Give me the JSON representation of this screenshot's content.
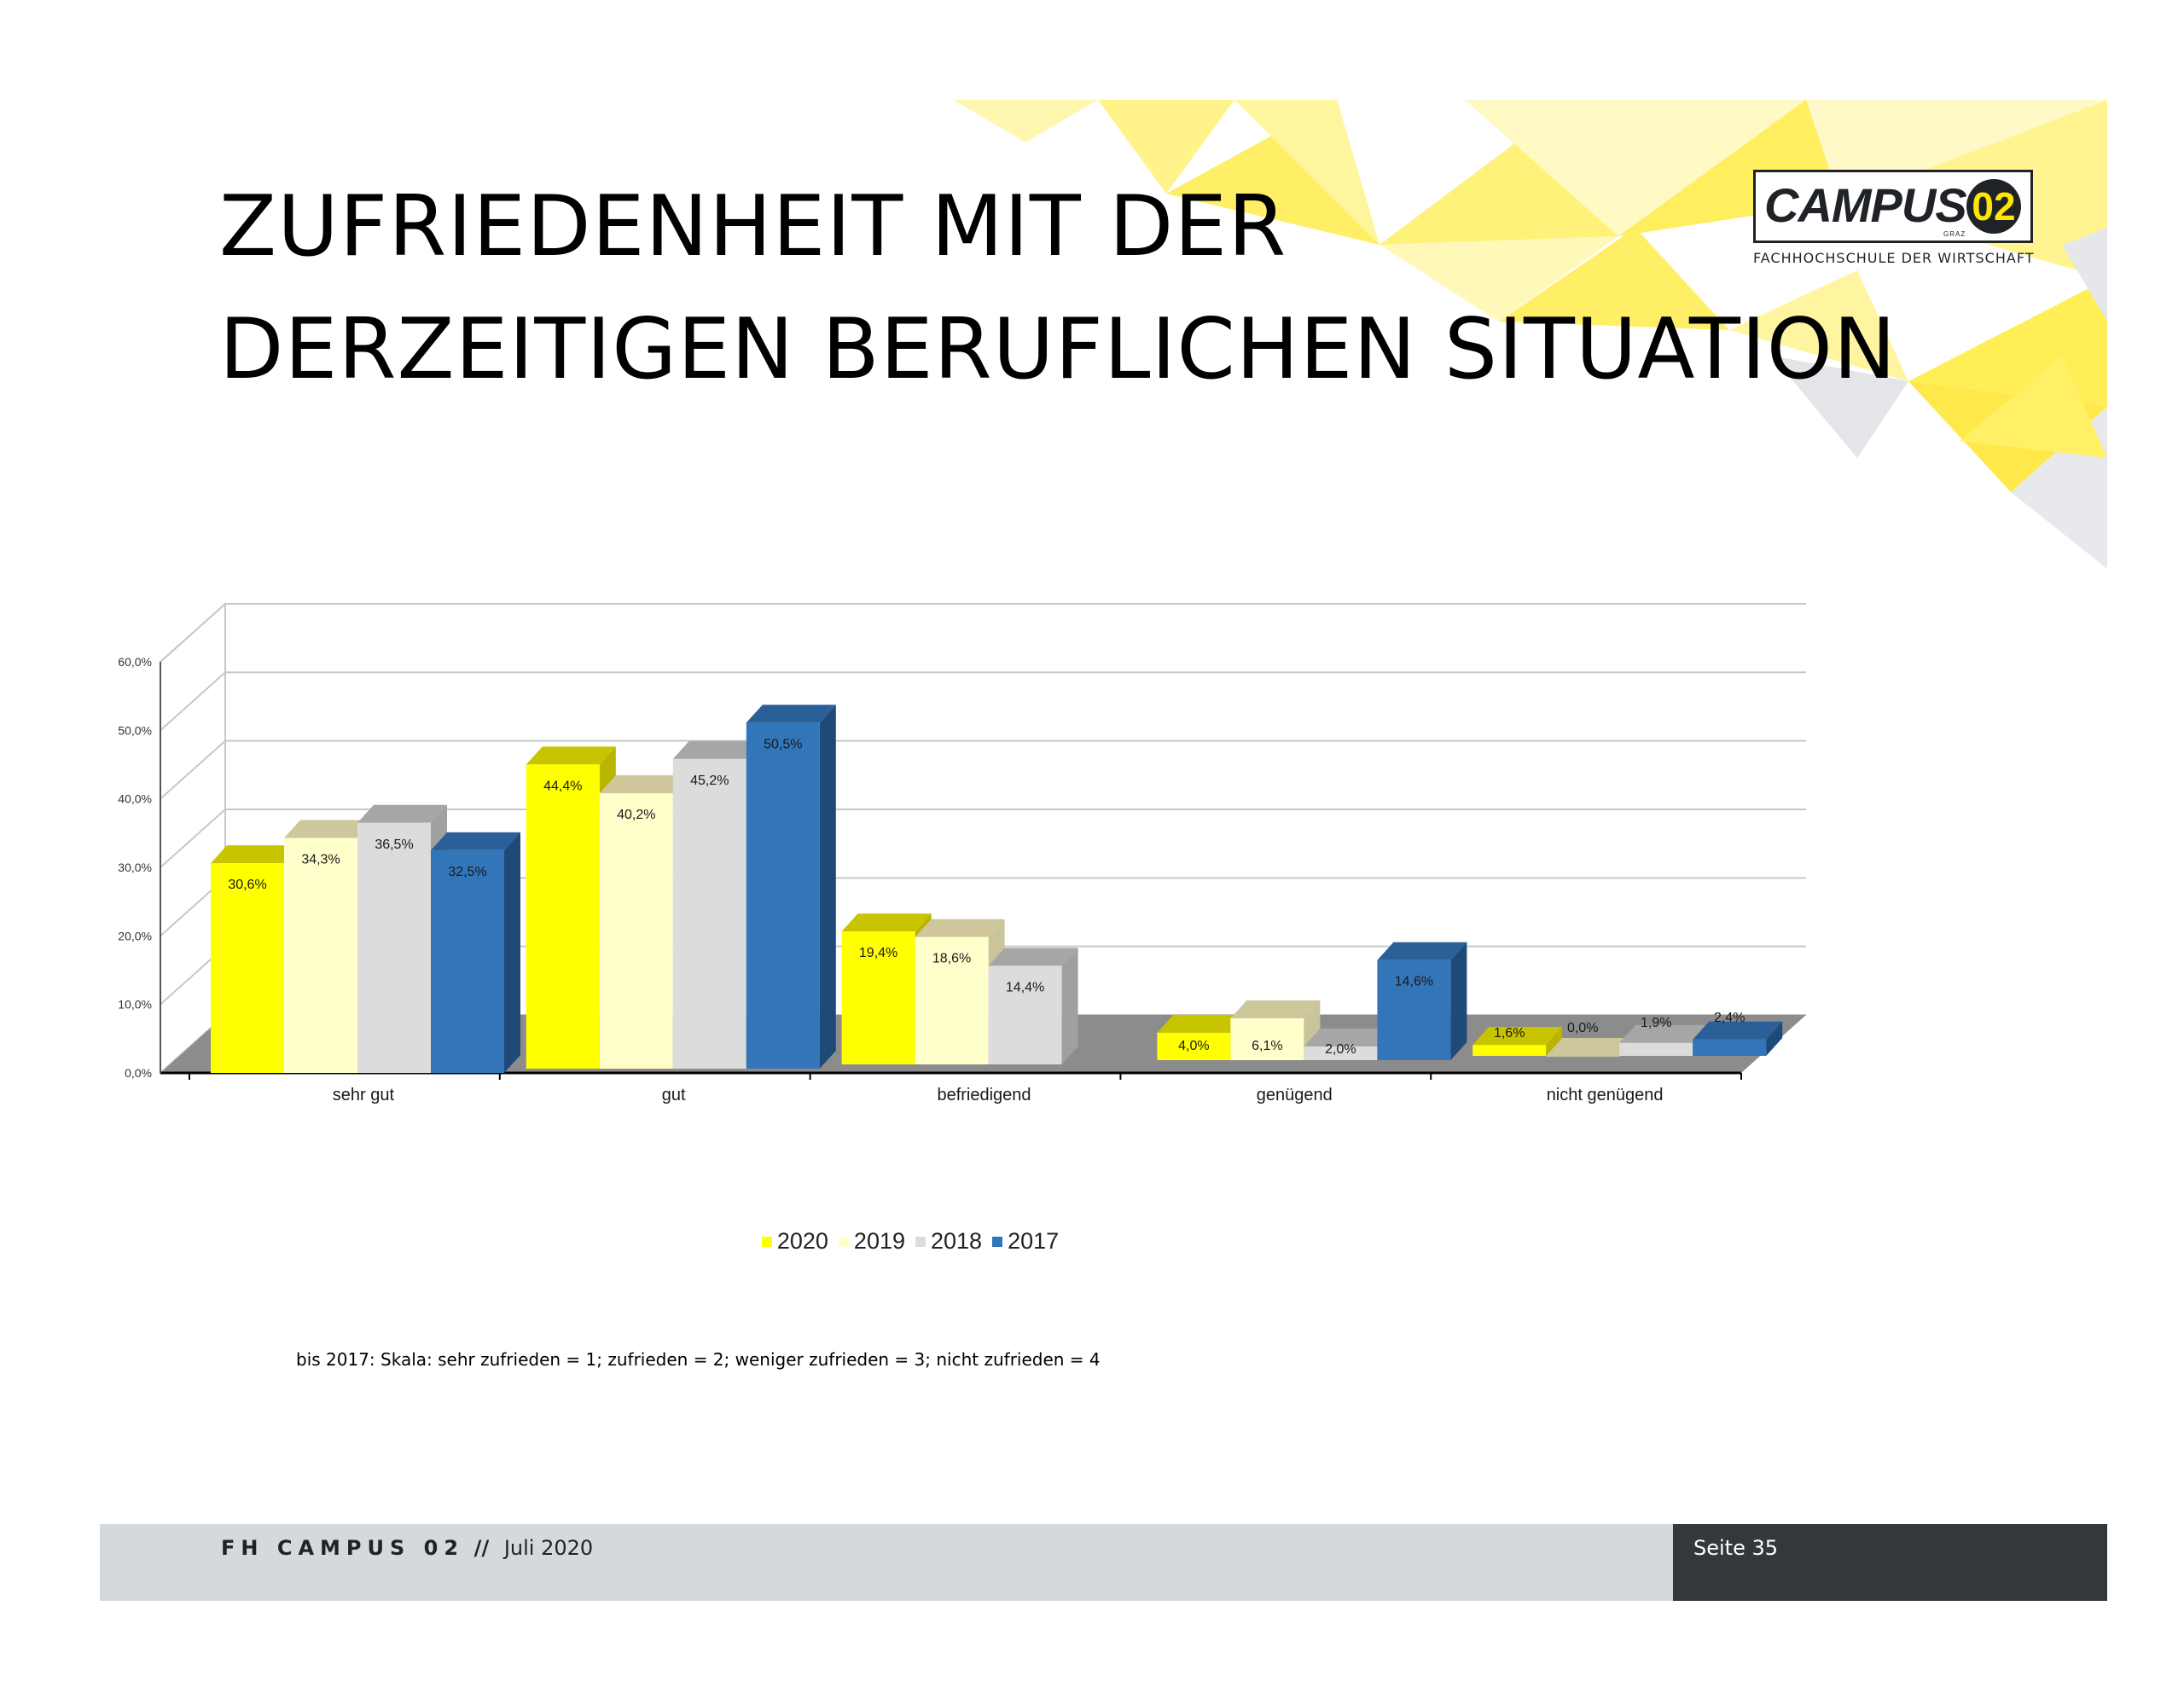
{
  "slide": {
    "title_line_1": "ZUFRIEDENHEIT MIT DER",
    "title_line_2": "DERZEITIGEN BERUFLICHEN SITUATION",
    "footnote": "bis 2017: Skala: sehr zufrieden = 1; zufrieden = 2; weniger zufrieden = 3; nicht zufrieden = 4"
  },
  "logo": {
    "word": "CAMPUS",
    "number": "02",
    "city": "GRAZ",
    "subtitle": "FACHHOCHSCHULE DER WIRTSCHAFT"
  },
  "footer": {
    "org": "FH CAMPUS 02",
    "separator": "//",
    "date": "Juli 2020",
    "page": "Seite 35"
  },
  "colors": {
    "accent_yellow": "#ffe600",
    "footer_gray": "#d6d9db",
    "footer_dark": "#33383d"
  },
  "chart_data": {
    "type": "bar",
    "style": "3d-clustered",
    "categories": [
      "sehr gut",
      "gut",
      "befriedigend",
      "genügend",
      "nicht genügend"
    ],
    "series": [
      {
        "name": "2020",
        "color": "#ffff00",
        "top": "#c8c400",
        "side": "#b8b400",
        "values": [
          30.6,
          44.4,
          19.4,
          4.0,
          1.6
        ],
        "labels": [
          "30,6%",
          "44,4%",
          "19,4%",
          "4,0%",
          "1,6%"
        ]
      },
      {
        "name": "2019",
        "color": "#ffffcc",
        "top": "#cdc79b",
        "side": "#c9c49a",
        "values": [
          34.3,
          40.2,
          18.6,
          6.1,
          0.0
        ],
        "labels": [
          "34,3%",
          "40,2%",
          "18,6%",
          "6,1%",
          "0,0%"
        ]
      },
      {
        "name": "2018",
        "color": "#dcdcdc",
        "top": "#a6a6a6",
        "side": "#a0a0a0",
        "values": [
          36.5,
          45.2,
          14.4,
          2.0,
          1.9
        ],
        "labels": [
          "36,5%",
          "45,2%",
          "14,4%",
          "2,0%",
          "1,9%"
        ]
      },
      {
        "name": "2017",
        "color": "#3375b9",
        "top": "#2a5f97",
        "side": "#1f4a78",
        "values": [
          32.5,
          50.5,
          0,
          14.6,
          2.4
        ],
        "labels": [
          "32,5%",
          "50,5%",
          "",
          "14,6%",
          "2,4%"
        ]
      }
    ],
    "yticks": [
      "0,0%",
      "10,0%",
      "20,0%",
      "30,0%",
      "40,0%",
      "50,0%",
      "60,0%"
    ],
    "ylim": [
      0,
      60
    ],
    "grid": true,
    "legend": "bottom"
  }
}
